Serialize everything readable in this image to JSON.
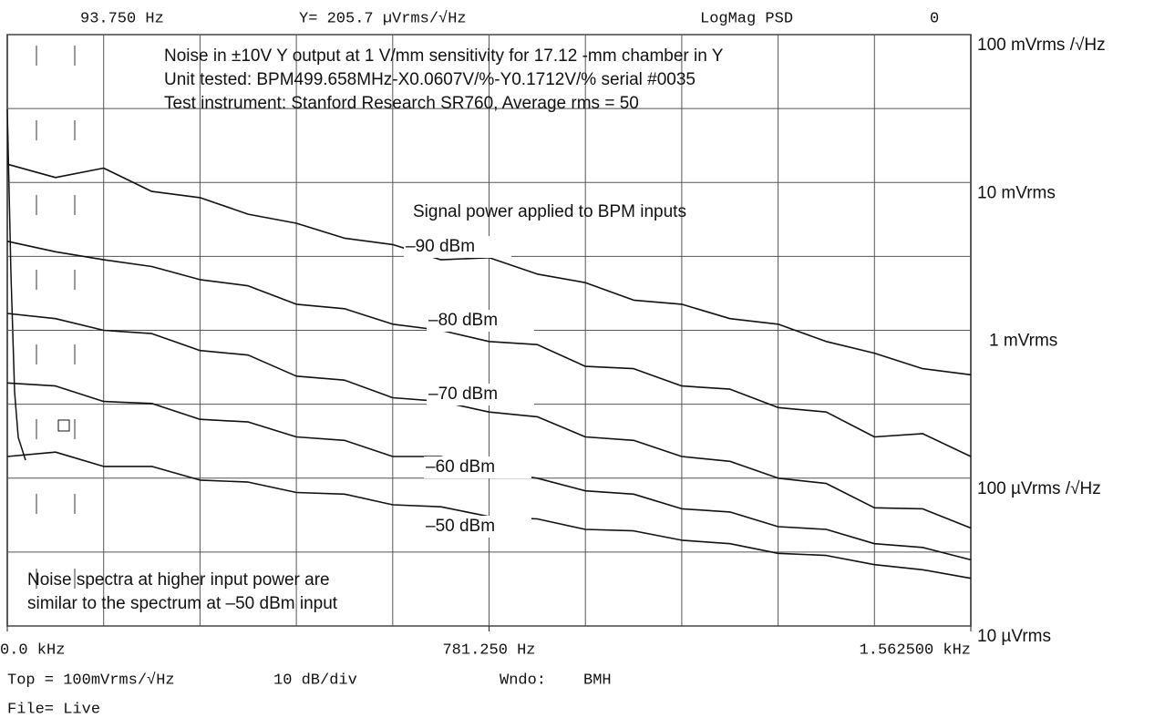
{
  "header": {
    "marker": "93.750 Hz",
    "readout": "Y= 205.7 µVrms/√Hz",
    "mode": "LogMag PSD",
    "trace": "0"
  },
  "footer": {
    "top": "Top = 100mVrms/√Hz",
    "scale": "10 dB/div",
    "window_label": "Wndo:",
    "window": "BMH",
    "file": "File= Live"
  },
  "chart_data": {
    "type": "line",
    "annotations": [
      "Noise in ±10V Y output at 1 V/mm sensitivity for 17.12 -mm chamber in Y",
      "Unit tested:  BPM499.658MHz-X0.0607V/%-Y0.1712V/% serial #0035",
      "Test instrument: Stanford Research SR760, Average rms = 50",
      "Signal power applied to BPM inputs",
      "Noise spectra at higher input power are",
      "similar to the spectrum at –50 dBm input"
    ],
    "x": [
      0,
      78.125,
      156.25,
      234.375,
      312.5,
      390.625,
      468.75,
      546.875,
      625,
      703.125,
      781.25,
      859.375,
      937.5,
      1015.625,
      1093.75,
      1171.875,
      1250,
      1328.125,
      1406.25,
      1484.375,
      1562.5
    ],
    "series": [
      {
        "name": "–90 dBm",
        "color": "#111111",
        "values": [
          0.0133,
          0.0108,
          0.0125,
          0.0087,
          0.0079,
          0.0061,
          0.0053,
          0.0042,
          0.0038,
          0.003,
          0.0031,
          0.0024,
          0.0021,
          0.0016,
          0.0015,
          0.0012,
          0.0011,
          0.00084,
          0.0007,
          0.00055,
          0.0005
        ]
      },
      {
        "name": "–80 dBm",
        "color": "#111111",
        "values": [
          0.004,
          0.0034,
          0.003,
          0.0027,
          0.0022,
          0.002,
          0.0015,
          0.0014,
          0.0011,
          0.001,
          0.00084,
          0.0008,
          0.00057,
          0.00055,
          0.00042,
          0.0004,
          0.0003,
          0.00028,
          0.00019,
          0.0002,
          0.00014
        ]
      },
      {
        "name": "–70 dBm",
        "color": "#111111",
        "values": [
          0.0013,
          0.0012,
          0.001,
          0.00095,
          0.00073,
          0.00068,
          0.00049,
          0.00046,
          0.00035,
          0.00033,
          0.00028,
          0.00026,
          0.00019,
          0.00018,
          0.00014,
          0.00013,
          0.0001,
          9.2e-05,
          6.3e-05,
          6.2e-05,
          4.6e-05
        ]
      },
      {
        "name": "–60 dBm",
        "color": "#111111",
        "values": [
          0.00044,
          0.00042,
          0.00033,
          0.00032,
          0.00025,
          0.00024,
          0.00019,
          0.00018,
          0.00014,
          0.00014,
          0.00011,
          0.0001,
          8.2e-05,
          7.8e-05,
          6.2e-05,
          5.9e-05,
          4.7e-05,
          4.5e-05,
          3.6e-05,
          3.4e-05,
          2.8e-05
        ]
      },
      {
        "name": "–50 dBm",
        "color": "#111111",
        "values": [
          0.00014,
          0.00015,
          0.00012,
          0.00012,
          9.7e-05,
          9.4e-05,
          8e-05,
          7.8e-05,
          6.6e-05,
          6.4e-05,
          5.5e-05,
          5.3e-05,
          4.5e-05,
          4.4e-05,
          3.8e-05,
          3.6e-05,
          3.1e-05,
          3e-05,
          2.6e-05,
          2.4e-05,
          2.1e-05
        ]
      }
    ],
    "xlim": [
      0,
      1562.5
    ],
    "xticks": [
      {
        "value": 0,
        "label": "0.0 kHz"
      },
      {
        "value": 781.25,
        "label": "781.250 Hz"
      },
      {
        "value": 1562.5,
        "label": "1.562500 kHz"
      }
    ],
    "ylim": [
      1e-05,
      0.1
    ],
    "yticks": [
      {
        "value": 0.1,
        "label": "100 mVrms /√Hz"
      },
      {
        "value": 0.01,
        "label": "10 mVrms"
      },
      {
        "value": 0.001,
        "label": "1 mVrms"
      },
      {
        "value": 0.0001,
        "label": "100 µVrms /√Hz"
      },
      {
        "value": 1e-05,
        "label": "10 µVrms"
      }
    ],
    "log_y": true,
    "grid": true
  }
}
